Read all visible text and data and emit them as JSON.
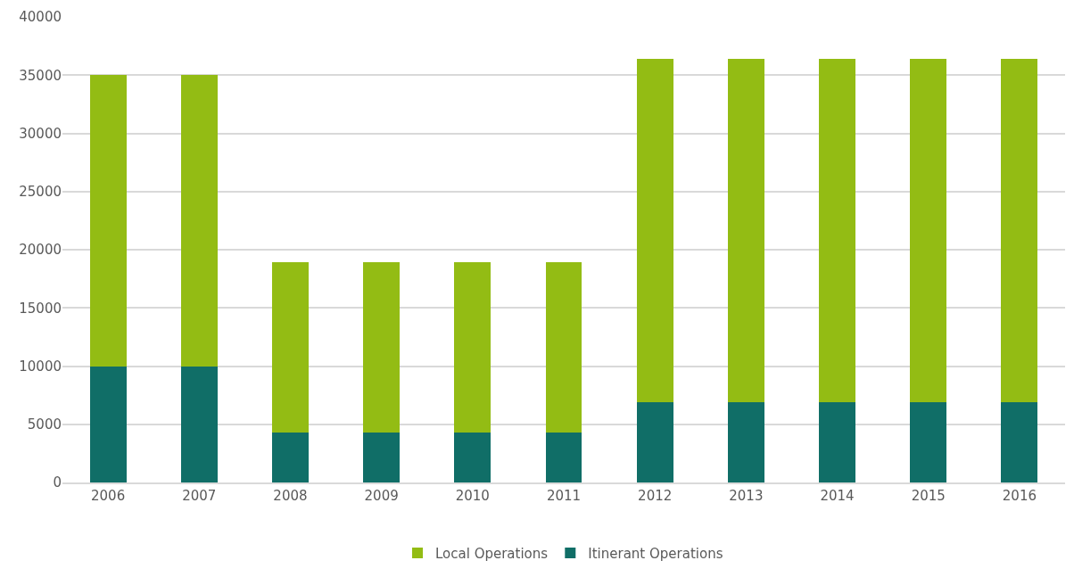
{
  "chart_data": {
    "type": "bar",
    "stacked": true,
    "categories": [
      "2006",
      "2007",
      "2008",
      "2009",
      "2010",
      "2011",
      "2012",
      "2013",
      "2014",
      "2015",
      "2016"
    ],
    "series": [
      {
        "name": "Itinerant Operations",
        "color": "#106e67",
        "values": [
          10000,
          10000,
          4300,
          4300,
          4300,
          4300,
          6900,
          6900,
          6900,
          6900,
          6900
        ]
      },
      {
        "name": "Local Operations",
        "color": "#93bc14",
        "values": [
          25000,
          25000,
          14600,
          14600,
          14600,
          14600,
          29500,
          29500,
          29500,
          29500,
          29500
        ]
      }
    ],
    "ylim": [
      0,
      40000
    ],
    "yticks": [
      0,
      5000,
      10000,
      15000,
      20000,
      25000,
      30000,
      35000,
      40000
    ],
    "grid": "y",
    "legend": "bottom"
  }
}
